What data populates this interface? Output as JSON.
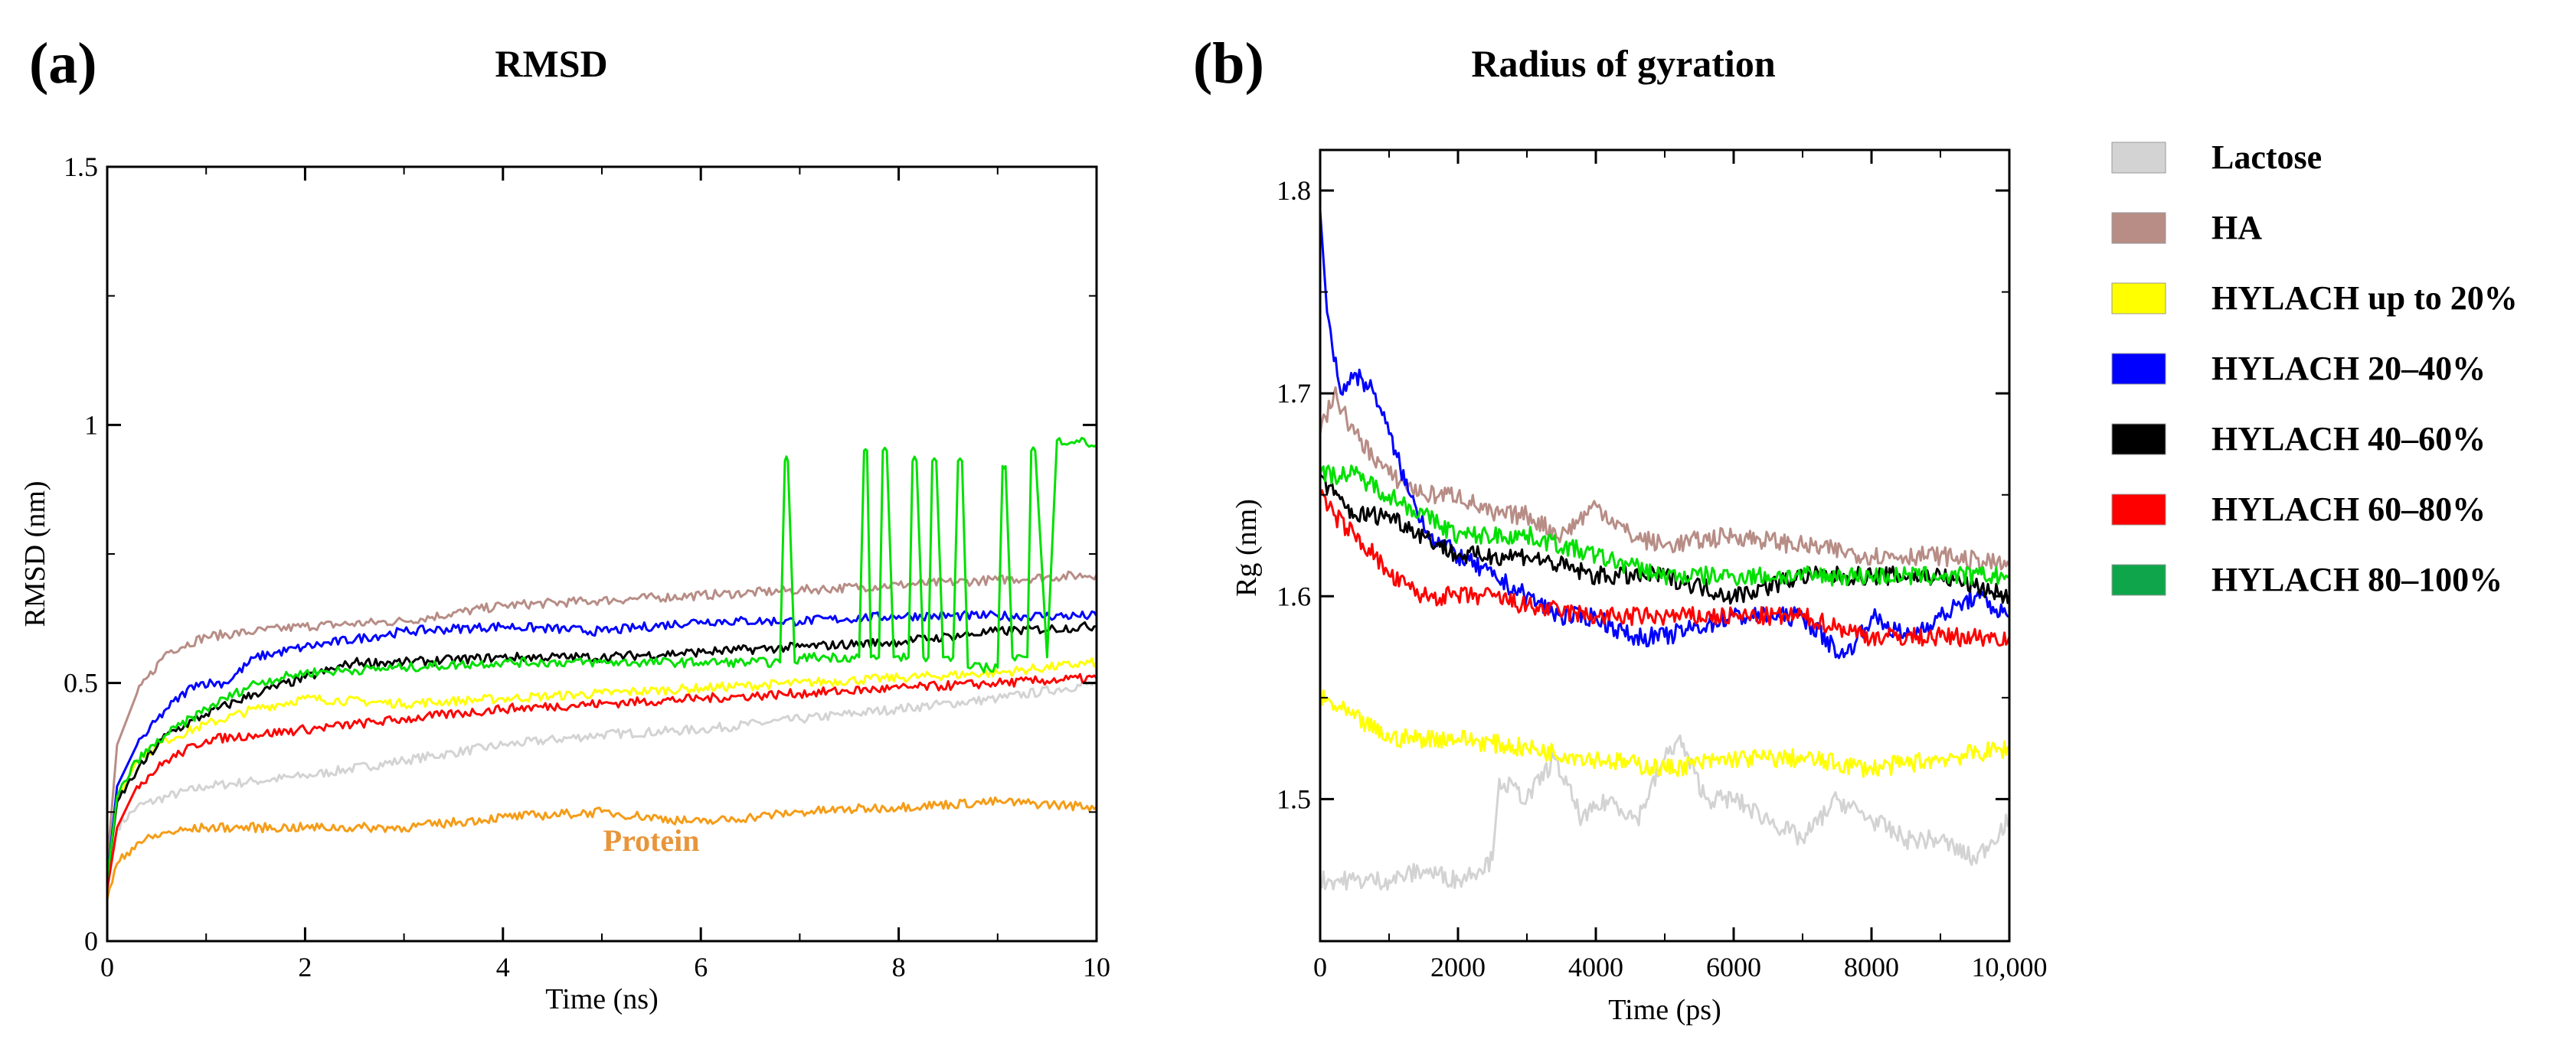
{
  "chart_data": [
    {
      "panel": "(a)",
      "type": "line",
      "title": "RMSD",
      "xlabel": "Time (ns)",
      "ylabel": "RMSD (nm)",
      "xlim": [
        0,
        10
      ],
      "ylim": [
        0,
        1.5
      ],
      "xticks": [
        0,
        2,
        4,
        6,
        8,
        10
      ],
      "xtick_labels": [
        "0",
        "2",
        "4",
        "6",
        "8",
        "10"
      ],
      "yticks": [
        0,
        0.5,
        1,
        1.5
      ],
      "ytick_labels": [
        "0",
        "0.5",
        "1",
        "1.5"
      ],
      "annotation": {
        "text": "Protein",
        "x": 5.5,
        "y": 0.175
      },
      "series": [
        {
          "color": "#d3d3d3",
          "x": [
            0,
            0.1,
            0.3,
            0.6,
            1,
            1.5,
            2,
            3,
            4,
            5,
            6,
            7,
            8,
            9,
            10
          ],
          "y": [
            0.12,
            0.22,
            0.26,
            0.28,
            0.3,
            0.31,
            0.32,
            0.35,
            0.38,
            0.4,
            0.41,
            0.43,
            0.45,
            0.47,
            0.5
          ]
        },
        {
          "color": "#b78d86",
          "x": [
            0,
            0.1,
            0.3,
            0.6,
            1,
            1.5,
            2,
            3,
            4,
            5,
            6,
            7,
            8,
            9,
            10
          ],
          "y": [
            0.15,
            0.38,
            0.48,
            0.56,
            0.59,
            0.6,
            0.61,
            0.62,
            0.65,
            0.66,
            0.67,
            0.68,
            0.69,
            0.7,
            0.71
          ]
        },
        {
          "color": "#ffff00",
          "x": [
            0,
            0.1,
            0.3,
            0.6,
            1,
            1.5,
            2,
            3,
            4,
            5,
            6,
            7,
            8,
            9,
            10
          ],
          "y": [
            0.12,
            0.27,
            0.35,
            0.39,
            0.42,
            0.45,
            0.47,
            0.46,
            0.47,
            0.48,
            0.49,
            0.5,
            0.51,
            0.52,
            0.54
          ]
        },
        {
          "color": "#0000ff",
          "x": [
            0,
            0.1,
            0.3,
            0.6,
            0.9,
            1.2,
            1.5,
            2,
            3,
            4,
            5,
            6,
            7,
            8,
            9,
            10
          ],
          "y": [
            0.12,
            0.3,
            0.38,
            0.45,
            0.5,
            0.5,
            0.55,
            0.57,
            0.6,
            0.61,
            0.6,
            0.62,
            0.62,
            0.63,
            0.63,
            0.63
          ]
        },
        {
          "color": "#000000",
          "x": [
            0,
            0.1,
            0.3,
            0.6,
            1,
            1.5,
            2,
            2.5,
            3,
            4,
            5,
            6,
            7,
            8,
            9,
            10
          ],
          "y": [
            0.12,
            0.27,
            0.33,
            0.4,
            0.44,
            0.48,
            0.51,
            0.54,
            0.54,
            0.55,
            0.55,
            0.56,
            0.57,
            0.58,
            0.6,
            0.61
          ]
        },
        {
          "color": "#ff0000",
          "x": [
            0,
            0.1,
            0.3,
            0.6,
            1,
            1.5,
            2,
            3,
            4,
            5,
            6,
            7,
            8,
            9,
            10
          ],
          "y": [
            0.1,
            0.22,
            0.3,
            0.35,
            0.39,
            0.4,
            0.41,
            0.43,
            0.45,
            0.46,
            0.47,
            0.48,
            0.49,
            0.5,
            0.51
          ]
        },
        {
          "color": "#00e000",
          "x": [
            0,
            0.1,
            0.3,
            0.6,
            1,
            1.5,
            2,
            3,
            4,
            5,
            6,
            6.8,
            6.85,
            6.88,
            6.95,
            7,
            7.6,
            7.65,
            7.68,
            7.72,
            7.8,
            7.84,
            7.88,
            7.95,
            8.1,
            8.14,
            8.18,
            8.25,
            8.3,
            8.34,
            8.38,
            8.45,
            8.55,
            8.6,
            8.64,
            8.7,
            9,
            9.05,
            9.08,
            9.15,
            9.3,
            9.34,
            9.38,
            9.5,
            9.6,
            9.8,
            10
          ],
          "y": [
            0.12,
            0.28,
            0.35,
            0.4,
            0.45,
            0.5,
            0.52,
            0.53,
            0.54,
            0.54,
            0.54,
            0.54,
            0.93,
            0.93,
            0.54,
            0.55,
            0.55,
            0.95,
            0.95,
            0.55,
            0.55,
            0.95,
            0.95,
            0.55,
            0.55,
            0.93,
            0.93,
            0.55,
            0.55,
            0.93,
            0.93,
            0.55,
            0.55,
            0.93,
            0.93,
            0.53,
            0.53,
            0.92,
            0.92,
            0.55,
            0.55,
            0.95,
            0.95,
            0.55,
            0.97,
            0.97,
            0.96
          ]
        },
        {
          "color": "#f59c17",
          "x": [
            0,
            0.1,
            0.3,
            0.6,
            1,
            2,
            3,
            4,
            5,
            6,
            7,
            8,
            9,
            10
          ],
          "y": [
            0.08,
            0.15,
            0.19,
            0.21,
            0.22,
            0.22,
            0.22,
            0.24,
            0.25,
            0.23,
            0.25,
            0.26,
            0.27,
            0.26
          ]
        }
      ]
    },
    {
      "panel": "(b)",
      "type": "line",
      "title": "Radius of gyration",
      "xlabel": "Time (ps)",
      "ylabel": "Rg (nm)",
      "xlim": [
        0,
        10000
      ],
      "ylim": [
        1.43,
        1.82
      ],
      "xticks": [
        0,
        2000,
        4000,
        6000,
        8000,
        10000
      ],
      "xtick_labels": [
        "0",
        "2000",
        "4000",
        "6000",
        "8000",
        "10,000"
      ],
      "yticks": [
        1.5,
        1.6,
        1.7,
        1.8
      ],
      "ytick_labels": [
        "1.5",
        "1.6",
        "1.7",
        "1.8"
      ],
      "legend_position": "right",
      "series": [
        {
          "name": "Lactose",
          "color": "#d3d3d3",
          "x": [
            0,
            500,
            1000,
            1500,
            2000,
            2500,
            2600,
            3000,
            3400,
            3800,
            4200,
            4600,
            5000,
            5200,
            5600,
            6000,
            6500,
            7000,
            7500,
            8000,
            8500,
            9000,
            9500,
            10000
          ],
          "y": [
            1.46,
            1.46,
            1.46,
            1.465,
            1.46,
            1.47,
            1.51,
            1.5,
            1.52,
            1.49,
            1.5,
            1.49,
            1.52,
            1.53,
            1.5,
            1.5,
            1.49,
            1.48,
            1.5,
            1.49,
            1.48,
            1.48,
            1.47,
            1.49
          ]
        },
        {
          "name": "HA",
          "color": "#b78d86",
          "x": [
            0,
            200,
            500,
            1000,
            1500,
            2000,
            2500,
            3000,
            3500,
            4000,
            4500,
            5000,
            6000,
            7000,
            8000,
            9000,
            10000
          ],
          "y": [
            1.68,
            1.7,
            1.68,
            1.66,
            1.65,
            1.65,
            1.64,
            1.64,
            1.63,
            1.645,
            1.63,
            1.625,
            1.63,
            1.625,
            1.62,
            1.62,
            1.615
          ]
        },
        {
          "name": "HYLACH up to 20%",
          "color": "#ffff00",
          "x": [
            0,
            500,
            1000,
            2000,
            3000,
            4000,
            5000,
            6000,
            7000,
            8000,
            9000,
            10000
          ],
          "y": [
            1.55,
            1.54,
            1.53,
            1.53,
            1.525,
            1.52,
            1.515,
            1.52,
            1.52,
            1.515,
            1.52,
            1.525
          ]
        },
        {
          "name": "HYLACH 20–40%",
          "color": "#0000ff",
          "x": [
            0,
            100,
            300,
            500,
            800,
            1000,
            1300,
            1600,
            2000,
            2500,
            3000,
            3500,
            4000,
            4500,
            5000,
            6000,
            7000,
            7600,
            8000,
            8500,
            9000,
            9500,
            10000
          ],
          "y": [
            1.79,
            1.74,
            1.7,
            1.71,
            1.7,
            1.68,
            1.65,
            1.63,
            1.62,
            1.61,
            1.6,
            1.59,
            1.59,
            1.58,
            1.58,
            1.59,
            1.59,
            1.57,
            1.59,
            1.58,
            1.59,
            1.6,
            1.59
          ]
        },
        {
          "name": "HYLACH 40–60%",
          "color": "#000000",
          "x": [
            0,
            200,
            500,
            1000,
            1500,
            2000,
            2500,
            3000,
            4000,
            5000,
            6000,
            7000,
            8000,
            9000,
            10000
          ],
          "y": [
            1.66,
            1.65,
            1.64,
            1.64,
            1.63,
            1.62,
            1.62,
            1.62,
            1.61,
            1.61,
            1.6,
            1.61,
            1.61,
            1.61,
            1.6
          ]
        },
        {
          "name": "HYLACH 60–80%",
          "color": "#ff0000",
          "x": [
            0,
            200,
            500,
            800,
            1000,
            1500,
            2000,
            2500,
            3000,
            4000,
            5000,
            6000,
            7000,
            8000,
            9000,
            10000
          ],
          "y": [
            1.65,
            1.64,
            1.63,
            1.62,
            1.61,
            1.6,
            1.6,
            1.6,
            1.595,
            1.59,
            1.59,
            1.59,
            1.59,
            1.58,
            1.58,
            1.58
          ]
        },
        {
          "name": "HYLACH 80–100%",
          "color": "#00e000",
          "x": [
            0,
            500,
            1000,
            1500,
            2000,
            3000,
            4000,
            5000,
            6000,
            7000,
            8000,
            9000,
            10000
          ],
          "y": [
            1.66,
            1.66,
            1.65,
            1.64,
            1.63,
            1.63,
            1.62,
            1.61,
            1.61,
            1.61,
            1.61,
            1.61,
            1.61
          ]
        }
      ]
    }
  ],
  "legend": [
    {
      "label": "Lactose",
      "color": "#d3d3d3"
    },
    {
      "label": "HA",
      "color": "#b78d86"
    },
    {
      "label": "HYLACH up to 20%",
      "color": "#ffff00"
    },
    {
      "label": "HYLACH 20–40%",
      "color": "#0000ff"
    },
    {
      "label": "HYLACH 40–60%",
      "color": "#000000"
    },
    {
      "label": "HYLACH 60–80%",
      "color": "#ff0000"
    },
    {
      "label": "HYLACH 80–100%",
      "color": "#0fa64b"
    }
  ]
}
